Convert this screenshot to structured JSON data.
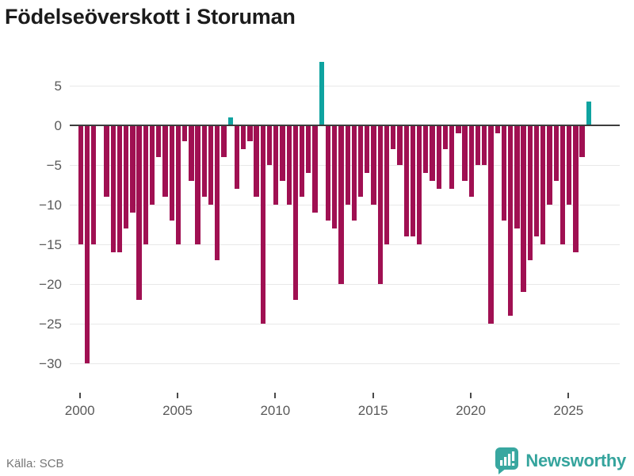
{
  "title": "Födelseöverskott i Storuman",
  "footer": {
    "source_label": "Källa: SCB",
    "brand_name": "Newsworthy"
  },
  "colors": {
    "negative_bar": "#a01052",
    "positive_bar": "#0fa3a0",
    "brand_teal": "#38a7a0",
    "zero_line": "#3d3d3d",
    "gridline": "#e8e8e8",
    "axis_text": "#595959",
    "title_text": "#1b1b1b",
    "source_text": "#767676"
  },
  "chart_data": {
    "type": "bar",
    "title": "Födelseöverskott i Storuman",
    "xlabel": "",
    "ylabel": "",
    "x_start_year": 2000,
    "periods_per_year": 3,
    "x_tick_labels": [
      "2000",
      "2005",
      "2010",
      "2015",
      "2020",
      "2025"
    ],
    "y_ticks": [
      5,
      0,
      -5,
      -10,
      -15,
      -20,
      -25,
      -30
    ],
    "y_tick_labels": [
      "5",
      "0",
      "−5",
      "−10",
      "−15",
      "−20",
      "−25",
      "−30"
    ],
    "ylim": [
      -31.2,
      9.3
    ],
    "grid": "horizontal",
    "legend": "none",
    "values": [
      -15,
      -30,
      -15,
      0,
      -9,
      -16,
      -16,
      -13,
      -11,
      -22,
      -15,
      -10,
      -4,
      -9,
      -12,
      -15,
      -2,
      -7,
      -15,
      -9,
      -10,
      -17,
      -4,
      1,
      -8,
      -3,
      -2,
      -9,
      -25,
      -5,
      -10,
      -7,
      -10,
      -22,
      -9,
      -6,
      -11,
      8,
      -12,
      -13,
      -20,
      -10,
      -12,
      -9,
      -6,
      -10,
      -20,
      -15,
      -3,
      -5,
      -14,
      -14,
      -15,
      -6,
      -7,
      -8,
      -3,
      -8,
      -1,
      -7,
      -9,
      -5,
      -5,
      -25,
      -1,
      -12,
      -24,
      -13,
      -21,
      -17,
      -14,
      -15,
      -10,
      -7,
      -15,
      -10,
      -16,
      -4,
      3
    ]
  }
}
